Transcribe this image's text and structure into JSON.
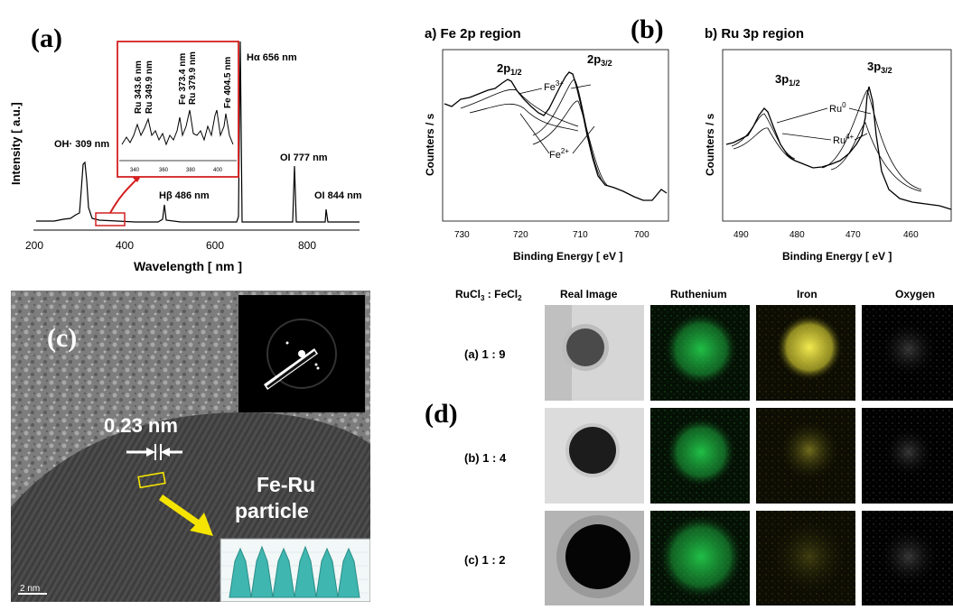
{
  "panel_a": {
    "label": "(a)",
    "ylabel": "Intensity [ a.u.]",
    "xlabel": "Wavelength [ nm ]",
    "xticks": [
      "200",
      "400",
      "600",
      "800"
    ],
    "peak_labels": {
      "oh": "OH· 309 nm",
      "hb": "Hβ 486 nm",
      "ha": "Hα 656 nm",
      "o777": "OI 777 nm",
      "o844": "OI 844 nm"
    },
    "inset_labels": [
      "Ru 343.6 nm",
      "Ru 349.9 nm",
      "Fe 373.4 nm",
      "Ru 379.9 nm",
      "Fe 404.5 nm"
    ],
    "inset_ticks": [
      "340",
      "360",
      "380",
      "400"
    ]
  },
  "panel_b": {
    "label": "(b)",
    "left_title": "a) Fe 2p region",
    "right_title": "b) Ru 3p region",
    "ylabel": "Counters / s",
    "xlabel": "Binding Energy [ eV ]",
    "fe_ticks": [
      "730",
      "720",
      "710",
      "700"
    ],
    "ru_ticks": [
      "490",
      "480",
      "470",
      "460"
    ],
    "fe_labels": {
      "p12": "2p1/2",
      "p32": "2p3/2",
      "fe3": "Fe3+",
      "fe2": "Fe2+"
    },
    "ru_labels": {
      "p12": "3p1/2",
      "p32": "3p3/2",
      "ru0": "Ru0",
      "ru4": "Ru4+"
    }
  },
  "panel_c": {
    "label": "(c)",
    "spacing": "0.23 nm",
    "particle_line1": "Fe-Ru",
    "particle_line2": "particle",
    "scale": "2 nm"
  },
  "panel_d": {
    "label": "(d)",
    "ratio_header": "RuCl3 : FeCl2",
    "columns": [
      "Real Image",
      "Ruthenium",
      "Iron",
      "Oxygen"
    ],
    "rows": [
      "(a) 1 : 9",
      "(b) 1 : 4",
      "(c) 1 : 2"
    ]
  },
  "colors": {
    "inset_box": "#d42020",
    "arrow_yellow": "#f5e400",
    "ruthenium": "#22c84a",
    "iron": "#e6e040",
    "fft_fill": "#3fb6b0"
  }
}
